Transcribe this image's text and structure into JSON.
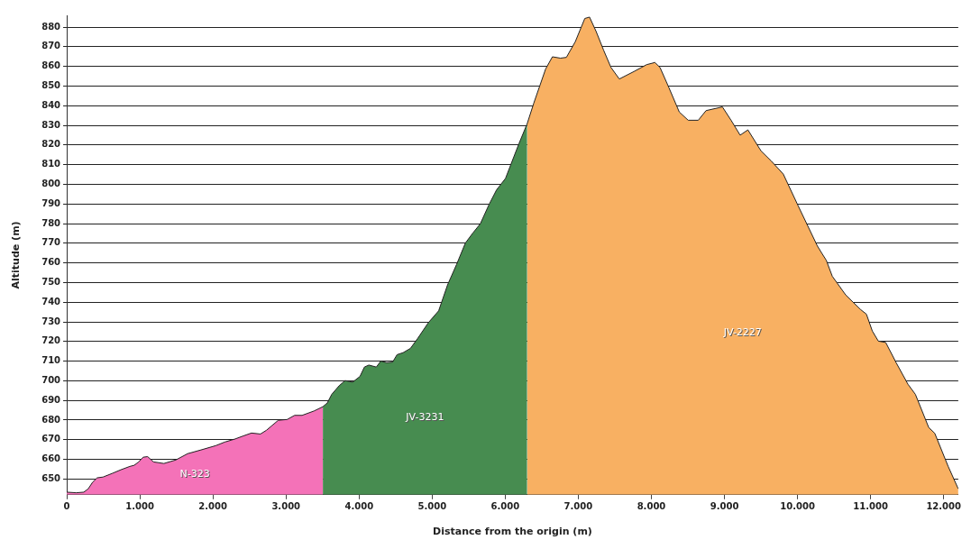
{
  "chart_data": {
    "type": "area",
    "xlabel": "Distance from the origin (m)",
    "ylabel": "Altitude (m)",
    "xlim": [
      0,
      12200
    ],
    "ylim": [
      642,
      886
    ],
    "xticks": [
      0,
      {
        "value": 1000,
        "label": "1.000"
      },
      {
        "value": 2000,
        "label": "2.000"
      },
      {
        "value": 3000,
        "label": "3.000"
      },
      {
        "value": 4000,
        "label": "4.000"
      },
      {
        "value": 5000,
        "label": "5.000"
      },
      {
        "value": 6000,
        "label": "6.000"
      },
      {
        "value": 7000,
        "label": "7.000"
      },
      {
        "value": 8000,
        "label": "8.000"
      },
      {
        "value": 9000,
        "label": "9.000"
      },
      {
        "value": 10000,
        "label": "10.000"
      },
      {
        "value": 11000,
        "label": "11.000"
      },
      {
        "value": 12000,
        "label": "12.000"
      }
    ],
    "yticks": [
      650,
      660,
      670,
      680,
      690,
      700,
      710,
      720,
      730,
      740,
      750,
      760,
      770,
      780,
      790,
      800,
      810,
      820,
      830,
      840,
      850,
      860,
      870,
      880
    ],
    "grid": "y",
    "series": [
      {
        "name": "N-323",
        "color": "#f472b8",
        "x": [
          0,
          130,
          232,
          293,
          354,
          415,
          496,
          618,
          740,
          862,
          923,
          984,
          1045,
          1106,
          1187,
          1329,
          1492,
          1654,
          1837,
          2040,
          2162,
          2305,
          2406,
          2528,
          2650,
          2732,
          2894,
          3016,
          3118,
          3220,
          3382,
          3504
        ],
        "values": [
          643.3,
          643.0,
          643.3,
          645.0,
          648.4,
          650.6,
          651.0,
          652.8,
          654.7,
          656.4,
          657.0,
          658.7,
          661.1,
          661.4,
          658.7,
          657.9,
          659.7,
          662.9,
          664.8,
          667.0,
          668.8,
          670.4,
          671.8,
          673.4,
          672.9,
          674.8,
          679.9,
          680.3,
          682.4,
          682.4,
          684.6,
          686.8
        ]
      },
      {
        "name": "JV-3231",
        "color": "#478c50",
        "x": [
          3504,
          3565,
          3626,
          3728,
          3809,
          3911,
          4012,
          4073,
          4134,
          4236,
          4297,
          4378,
          4459,
          4520,
          4602,
          4703,
          4805,
          4947,
          5089,
          5211,
          5333,
          5455,
          5557,
          5659,
          5780,
          5882,
          6004,
          6065,
          6187,
          6301
        ],
        "values": [
          686.8,
          688.7,
          693.1,
          697.5,
          700.1,
          699.3,
          702.2,
          707.0,
          708.0,
          707.0,
          710.0,
          709.2,
          709.5,
          713.3,
          714.3,
          716.5,
          721.7,
          729.5,
          735.6,
          748.8,
          759.1,
          770.1,
          775.2,
          779.9,
          789.8,
          797.2,
          803.0,
          808.9,
          820.6,
          830.9
        ]
      },
      {
        "name": "JV-2227",
        "color": "#f8b062",
        "x": [
          6301,
          6390,
          6553,
          6646,
          6756,
          6837,
          6959,
          7089,
          7154,
          7244,
          7346,
          7447,
          7561,
          7772,
          7935,
          8049,
          8118,
          8240,
          8382,
          8504,
          8642,
          8748,
          8972,
          9094,
          9215,
          9321,
          9500,
          9642,
          9805,
          10008,
          10272,
          10333,
          10394,
          10476,
          10659,
          10760,
          10862,
          10943,
          11024,
          11106,
          11207,
          11350,
          11512,
          11613,
          11796,
          11878,
          12061,
          12200
        ],
        "values": [
          830.9,
          841.2,
          858.7,
          864.9,
          864.2,
          864.6,
          872.6,
          884.4,
          885.1,
          877.8,
          868.3,
          859.5,
          853.6,
          857.6,
          860.9,
          862.0,
          859.5,
          849.2,
          836.8,
          832.6,
          832.6,
          837.5,
          839.4,
          832.4,
          825.0,
          827.7,
          817.0,
          811.8,
          805.2,
          789.1,
          768.6,
          764.9,
          761.3,
          753.2,
          743.7,
          740.0,
          736.3,
          733.9,
          725.3,
          720.2,
          719.5,
          709.2,
          698.2,
          693.1,
          676.2,
          673.3,
          656.5,
          645.0
        ]
      }
    ]
  }
}
